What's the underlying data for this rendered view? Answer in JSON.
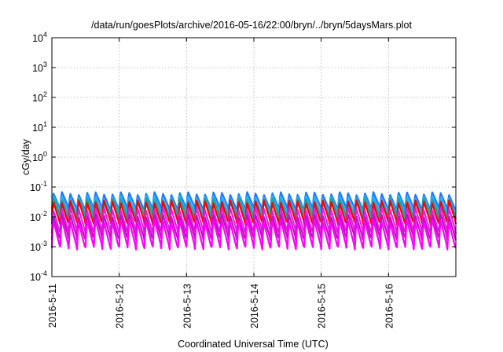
{
  "chart_data": {
    "type": "line",
    "title": "/data/run/goesPlots/archive/2016-05-16/22:00/bryn/../bryn/5daysMars.plot",
    "xlabel": "Coordinated Universal Time (UTC)",
    "ylabel": "cGy/day",
    "x_range": [
      "2016-05-11",
      "2016-05-17"
    ],
    "x_ticks": [
      "2016-5-11",
      "2016-5-12",
      "2016-5-13",
      "2016-5-14",
      "2016-5-15",
      "2016-5-16"
    ],
    "y_scale": "log",
    "ylim": [
      0.0001,
      10000
    ],
    "y_ticks": [
      {
        "base": "10",
        "exp": "-4",
        "value": 0.0001
      },
      {
        "base": "10",
        "exp": "-3",
        "value": 0.001
      },
      {
        "base": "10",
        "exp": "-2",
        "value": 0.01
      },
      {
        "base": "10",
        "exp": "-1",
        "value": 0.1
      },
      {
        "base": "10",
        "exp": "0",
        "value": 1
      },
      {
        "base": "10",
        "exp": "1",
        "value": 10
      },
      {
        "base": "10",
        "exp": "2",
        "value": 100
      },
      {
        "base": "10",
        "exp": "3",
        "value": 1000
      },
      {
        "base": "10",
        "exp": "4",
        "value": 10000
      }
    ],
    "grid": true,
    "oscillation_cycles_per_day": 8,
    "series": [
      {
        "color": "#1f77ff",
        "peak": 0.065,
        "trough": 0.018
      },
      {
        "color": "#1fb0ff",
        "peak": 0.05,
        "trough": 0.013
      },
      {
        "color": "#2a9d8f",
        "peak": 0.04,
        "trough": 0.01
      },
      {
        "color": "#00bfbf",
        "peak": 0.03,
        "trough": 0.008
      },
      {
        "color": "#ff0000",
        "peak": 0.035,
        "trough": 0.006
      },
      {
        "color": "#e61ee6",
        "peak": 0.02,
        "trough": 0.003
      },
      {
        "color": "#c010c0",
        "peak": 0.012,
        "trough": 0.0018
      },
      {
        "color": "#ff00ff",
        "peak": 0.008,
        "trough": 0.0009
      }
    ]
  }
}
